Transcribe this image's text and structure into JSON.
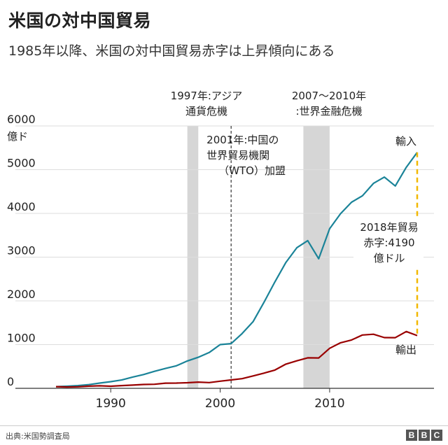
{
  "title": "米国の対中国貿易",
  "subtitle": "1985年以降、米国の対中国貿易赤字は上昇傾向にある",
  "footer": {
    "source": "出典:米国勢調査局",
    "logo_letters": [
      "B",
      "B",
      "C"
    ]
  },
  "colors": {
    "imports": "#1a8398",
    "exports": "#990000",
    "deficit": "#f2b800",
    "band": "#d6d6d6",
    "grid": "#dddddd"
  },
  "chart_data": {
    "type": "line",
    "yunit": "億ド",
    "ylim": [
      0,
      6000
    ],
    "yticks": [
      0,
      1000,
      2000,
      3000,
      4000,
      5000,
      6000
    ],
    "xlim": [
      1985,
      2018
    ],
    "xticks": [
      1990,
      2000,
      2010
    ],
    "x": [
      1985,
      1986,
      1987,
      1988,
      1989,
      1990,
      1991,
      1992,
      1993,
      1994,
      1995,
      1996,
      1997,
      1998,
      1999,
      2000,
      2001,
      2002,
      2003,
      2004,
      2005,
      2006,
      2007,
      2008,
      2009,
      2010,
      2011,
      2012,
      2013,
      2014,
      2015,
      2016,
      2017,
      2018
    ],
    "series": [
      {
        "name": "輸入",
        "key": "imports",
        "values": [
          39,
          48,
          63,
          85,
          120,
          152,
          190,
          257,
          315,
          389,
          455,
          515,
          626,
          711,
          819,
          1000,
          1023,
          1252,
          1524,
          1967,
          2434,
          2878,
          3215,
          3378,
          2963,
          3649,
          3994,
          4256,
          4404,
          4686,
          4830,
          4627,
          5055,
          5396
        ]
      },
      {
        "name": "輸出",
        "key": "exports",
        "values": [
          38,
          31,
          35,
          50,
          58,
          48,
          63,
          74,
          88,
          93,
          118,
          120,
          128,
          142,
          131,
          163,
          192,
          221,
          284,
          347,
          418,
          553,
          629,
          698,
          695,
          916,
          1041,
          1106,
          1219,
          1237,
          1160,
          1158,
          1299,
          1206
        ]
      }
    ],
    "bands": [
      {
        "from": 1997,
        "to": 1998,
        "label_lines": [
          "1997年:アジア",
          "通貨危機"
        ]
      },
      {
        "from": 2007.6,
        "to": 2010,
        "label_lines": [
          "2007〜2010年",
          ":世界金融危機"
        ]
      }
    ],
    "vline": {
      "x": 2001,
      "label_lines": [
        "2001年:中国の",
        "世界貿易機関",
        "（WTO）加盟"
      ]
    },
    "deficit": {
      "year": 2018,
      "from": 1206,
      "to": 5396,
      "label_lines": [
        "2018年貿易",
        "赤字:4190",
        "億ドル"
      ]
    }
  }
}
